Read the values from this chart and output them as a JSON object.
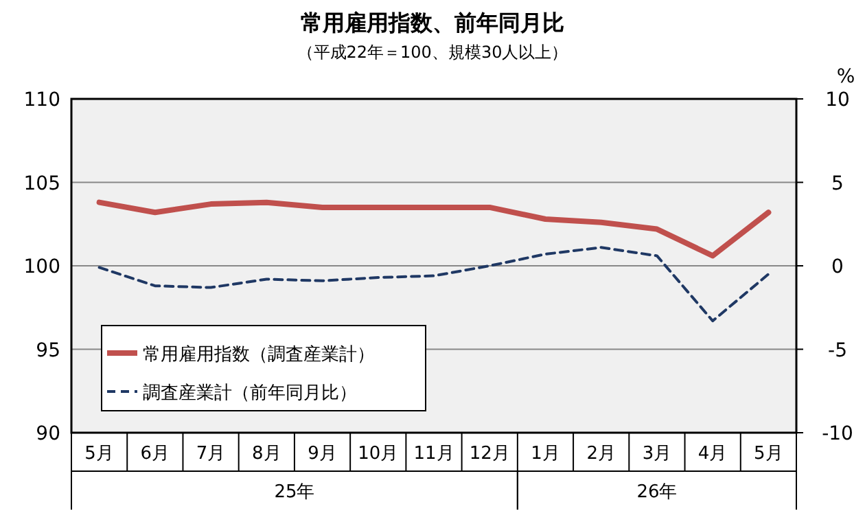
{
  "chart_data": {
    "type": "line",
    "title": "常用雇用指数、前年同月比",
    "subtitle": "（平成22年＝100、規模30人以上）",
    "y2label": "%",
    "categories": [
      "5月",
      "6月",
      "7月",
      "8月",
      "9月",
      "10月",
      "11月",
      "12月",
      "1月",
      "2月",
      "3月",
      "4月",
      "5月"
    ],
    "series": [
      {
        "name": "常用雇用指数（調査産業計）",
        "color": "#c0504d",
        "line_style": "solid",
        "values": [
          103.8,
          103.2,
          103.7,
          103.8,
          103.5,
          103.5,
          103.5,
          103.5,
          102.8,
          102.6,
          102.2,
          100.6,
          103.2
        ]
      },
      {
        "name": "調査産業計（前年同月比）",
        "color": "#1f3864",
        "line_style": "dashed",
        "axis": "y2",
        "values": [
          -0.1,
          -1.2,
          -1.3,
          -0.8,
          -0.9,
          -0.7,
          -0.6,
          0.0,
          0.7,
          1.1,
          0.6,
          -3.3,
          -0.5
        ]
      }
    ],
    "ylim": [
      90,
      110
    ],
    "yticks": [
      90,
      95,
      100,
      105,
      110
    ],
    "y2lim": [
      -10,
      10
    ],
    "y2ticks": [
      -10,
      -5,
      0,
      5,
      10
    ],
    "grid": "y",
    "legend": "bottom left",
    "marker": "none",
    "annotations": [
      "25年",
      "26年"
    ]
  }
}
